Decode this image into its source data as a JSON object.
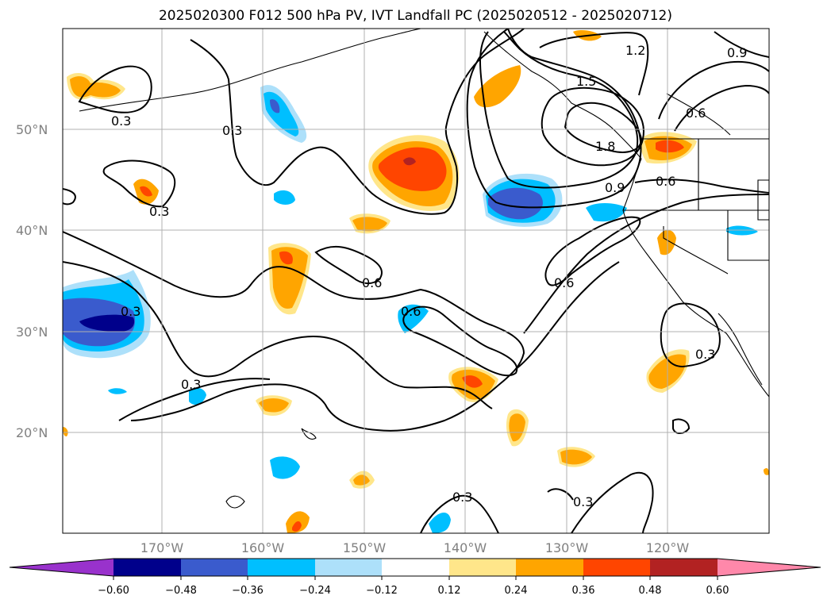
{
  "title": "2025020300 F012 500 hPa PV, IVT Landfall PC (2025020512 - 2025020712)",
  "map": {
    "lat_labels": [
      "50°N",
      "40°N",
      "30°N",
      "20°N"
    ],
    "lon_labels": [
      "170°W",
      "160°W",
      "150°W",
      "140°W",
      "130°W",
      "120°W"
    ],
    "contour_labels": [
      "0.3",
      "0.3",
      "0.3",
      "0.3",
      "0.3",
      "0.3",
      "0.3",
      "0.6",
      "0.6",
      "0.6",
      "0.6",
      "0.6",
      "0.9",
      "0.9",
      "1.2",
      "1.5",
      "1.8",
      "0.3"
    ]
  },
  "colorbar": {
    "ticks": [
      "−0.60",
      "−0.48",
      "−0.36",
      "−0.24",
      "−0.12",
      "0.12",
      "0.24",
      "0.36",
      "0.48",
      "0.60"
    ],
    "colors": [
      "#9932CC",
      "#00008B",
      "#3A5BCD",
      "#00BFFF",
      "#ADE0FA",
      "#FFFFFF",
      "#FFE68A",
      "#FFA500",
      "#FF4500",
      "#B22222",
      "#FF88AA"
    ]
  }
}
